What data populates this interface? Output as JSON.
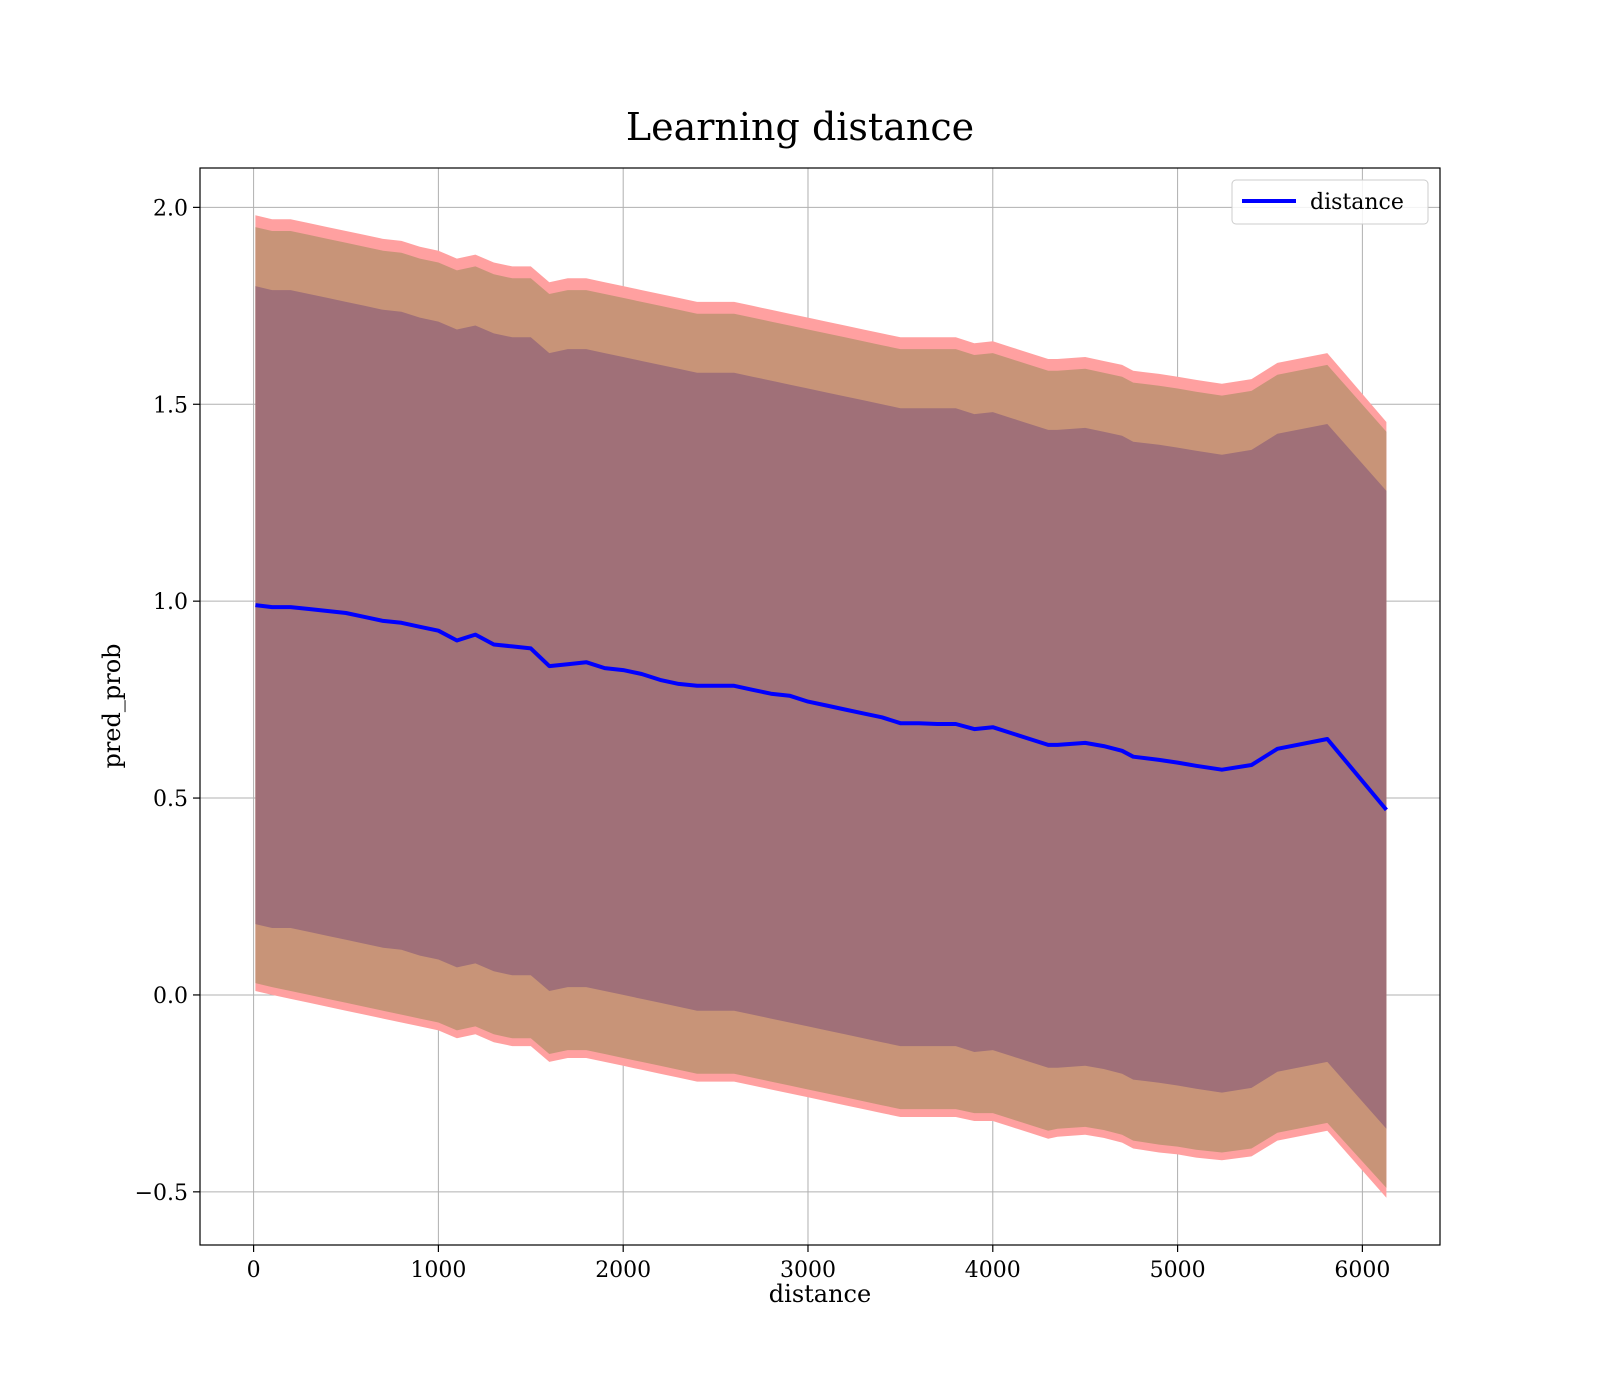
{
  "chart_data": {
    "type": "line",
    "title": "Learning distance",
    "xlabel": "distance",
    "ylabel": "pred_prob",
    "xlim": [
      -290,
      6420
    ],
    "ylim": [
      -0.635,
      2.1
    ],
    "xticks": [
      0,
      1000,
      2000,
      3000,
      4000,
      5000,
      6000
    ],
    "xtick_labels": [
      "0",
      "1000",
      "2000",
      "3000",
      "4000",
      "5000",
      "6000"
    ],
    "yticks": [
      -0.5,
      0.0,
      0.5,
      1.0,
      1.5,
      2.0
    ],
    "ytick_labels": [
      "−0.5",
      "0.0",
      "0.5",
      "1.0",
      "1.5",
      "2.0"
    ],
    "grid": true,
    "legend": {
      "position": "top-right",
      "entries": [
        "distance"
      ]
    },
    "colors": {
      "line": "#0000ff",
      "band_outer": "#ffa0a0",
      "band_middle": "#c89478",
      "band_inner": "#a07078",
      "grid": "#b0b0b0"
    },
    "x": [
      10,
      100,
      200,
      300,
      400,
      500,
      600,
      700,
      800,
      900,
      1000,
      1100,
      1200,
      1300,
      1400,
      1500,
      1600,
      1700,
      1800,
      1900,
      2000,
      2100,
      2200,
      2300,
      2400,
      2500,
      2600,
      2700,
      2800,
      2900,
      3000,
      3100,
      3200,
      3300,
      3400,
      3500,
      3600,
      3700,
      3800,
      3900,
      4000,
      4100,
      4200,
      4300,
      4350,
      4500,
      4600,
      4700,
      4760,
      4900,
      5000,
      5100,
      5240,
      5400,
      5540,
      5810,
      6130
    ],
    "series": [
      {
        "name": "distance",
        "values": [
          0.99,
          0.985,
          0.985,
          0.98,
          0.975,
          0.97,
          0.96,
          0.95,
          0.945,
          0.935,
          0.925,
          0.9,
          0.915,
          0.89,
          0.885,
          0.88,
          0.835,
          0.84,
          0.845,
          0.83,
          0.825,
          0.815,
          0.8,
          0.79,
          0.785,
          0.785,
          0.785,
          0.775,
          0.765,
          0.76,
          0.745,
          0.735,
          0.725,
          0.715,
          0.705,
          0.69,
          0.69,
          0.688,
          0.688,
          0.675,
          0.68,
          0.665,
          0.65,
          0.635,
          0.635,
          0.64,
          0.632,
          0.62,
          0.605,
          0.597,
          0.59,
          0.582,
          0.572,
          0.584,
          0.625,
          0.65,
          0.47
        ]
      }
    ],
    "bands": [
      {
        "name": "outer",
        "lower": [
          0.01,
          0.0,
          -0.01,
          -0.02,
          -0.03,
          -0.04,
          -0.05,
          -0.06,
          -0.07,
          -0.08,
          -0.09,
          -0.11,
          -0.1,
          -0.12,
          -0.13,
          -0.13,
          -0.17,
          -0.16,
          -0.16,
          -0.17,
          -0.18,
          -0.19,
          -0.2,
          -0.21,
          -0.22,
          -0.22,
          -0.22,
          -0.23,
          -0.24,
          -0.25,
          -0.26,
          -0.27,
          -0.28,
          -0.29,
          -0.3,
          -0.31,
          -0.31,
          -0.31,
          -0.31,
          -0.32,
          -0.32,
          -0.335,
          -0.35,
          -0.365,
          -0.36,
          -0.355,
          -0.363,
          -0.375,
          -0.39,
          -0.4,
          -0.405,
          -0.413,
          -0.42,
          -0.41,
          -0.37,
          -0.345,
          -0.515
        ],
        "upper": [
          1.98,
          1.97,
          1.97,
          1.96,
          1.95,
          1.94,
          1.93,
          1.92,
          1.915,
          1.9,
          1.89,
          1.87,
          1.88,
          1.86,
          1.85,
          1.85,
          1.81,
          1.82,
          1.82,
          1.81,
          1.8,
          1.79,
          1.78,
          1.77,
          1.76,
          1.76,
          1.76,
          1.75,
          1.74,
          1.73,
          1.72,
          1.71,
          1.7,
          1.69,
          1.68,
          1.67,
          1.67,
          1.67,
          1.67,
          1.655,
          1.66,
          1.645,
          1.63,
          1.615,
          1.615,
          1.62,
          1.61,
          1.6,
          1.585,
          1.577,
          1.57,
          1.562,
          1.552,
          1.564,
          1.605,
          1.63,
          1.455
        ]
      },
      {
        "name": "middle",
        "lower": [
          0.03,
          0.02,
          0.01,
          0.0,
          -0.01,
          -0.02,
          -0.03,
          -0.04,
          -0.05,
          -0.06,
          -0.07,
          -0.09,
          -0.08,
          -0.1,
          -0.11,
          -0.11,
          -0.15,
          -0.14,
          -0.14,
          -0.15,
          -0.16,
          -0.17,
          -0.18,
          -0.19,
          -0.2,
          -0.2,
          -0.2,
          -0.21,
          -0.22,
          -0.23,
          -0.24,
          -0.25,
          -0.26,
          -0.27,
          -0.28,
          -0.29,
          -0.29,
          -0.29,
          -0.29,
          -0.3,
          -0.3,
          -0.315,
          -0.33,
          -0.345,
          -0.34,
          -0.335,
          -0.343,
          -0.355,
          -0.37,
          -0.38,
          -0.385,
          -0.393,
          -0.4,
          -0.39,
          -0.35,
          -0.325,
          -0.49
        ],
        "upper": [
          1.95,
          1.94,
          1.94,
          1.93,
          1.92,
          1.91,
          1.9,
          1.89,
          1.885,
          1.87,
          1.86,
          1.84,
          1.85,
          1.83,
          1.82,
          1.82,
          1.78,
          1.79,
          1.79,
          1.78,
          1.77,
          1.76,
          1.75,
          1.74,
          1.73,
          1.73,
          1.73,
          1.72,
          1.71,
          1.7,
          1.69,
          1.68,
          1.67,
          1.66,
          1.65,
          1.64,
          1.64,
          1.64,
          1.64,
          1.625,
          1.63,
          1.615,
          1.6,
          1.585,
          1.585,
          1.59,
          1.58,
          1.57,
          1.555,
          1.547,
          1.54,
          1.532,
          1.522,
          1.534,
          1.575,
          1.6,
          1.43
        ]
      },
      {
        "name": "inner",
        "lower": [
          0.18,
          0.17,
          0.17,
          0.16,
          0.15,
          0.14,
          0.13,
          0.12,
          0.115,
          0.1,
          0.09,
          0.07,
          0.08,
          0.06,
          0.05,
          0.05,
          0.01,
          0.02,
          0.02,
          0.01,
          0.0,
          -0.01,
          -0.02,
          -0.03,
          -0.04,
          -0.04,
          -0.04,
          -0.05,
          -0.06,
          -0.07,
          -0.08,
          -0.09,
          -0.1,
          -0.11,
          -0.12,
          -0.13,
          -0.13,
          -0.13,
          -0.13,
          -0.145,
          -0.14,
          -0.155,
          -0.17,
          -0.185,
          -0.185,
          -0.18,
          -0.188,
          -0.2,
          -0.215,
          -0.223,
          -0.23,
          -0.238,
          -0.248,
          -0.236,
          -0.195,
          -0.17,
          -0.34
        ],
        "upper": [
          1.8,
          1.79,
          1.79,
          1.78,
          1.77,
          1.76,
          1.75,
          1.74,
          1.735,
          1.72,
          1.71,
          1.69,
          1.7,
          1.68,
          1.67,
          1.67,
          1.63,
          1.64,
          1.64,
          1.63,
          1.62,
          1.61,
          1.6,
          1.59,
          1.58,
          1.58,
          1.58,
          1.57,
          1.56,
          1.55,
          1.54,
          1.53,
          1.52,
          1.51,
          1.5,
          1.49,
          1.49,
          1.49,
          1.49,
          1.475,
          1.48,
          1.465,
          1.45,
          1.435,
          1.435,
          1.44,
          1.43,
          1.42,
          1.405,
          1.397,
          1.39,
          1.382,
          1.372,
          1.384,
          1.425,
          1.45,
          1.28
        ]
      }
    ]
  }
}
